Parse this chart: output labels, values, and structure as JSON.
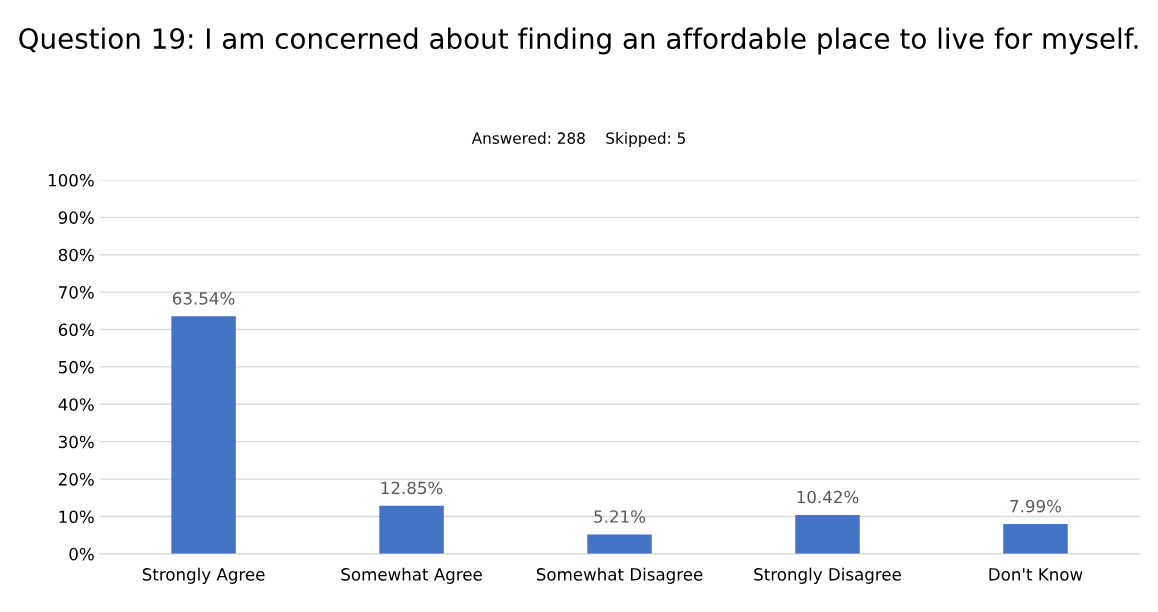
{
  "chart_data": {
    "type": "bar",
    "title": "Question 19: I am concerned about finding an affordable place to live for myself.",
    "subtitle": "Answered: 288    Skipped: 5",
    "categories": [
      "Strongly Agree",
      "Somewhat Agree",
      "Somewhat Disagree",
      "Strongly Disagree",
      "Don't Know"
    ],
    "values": [
      63.54,
      12.85,
      5.21,
      10.42,
      7.99
    ],
    "value_labels": [
      "63.54%",
      "12.85%",
      "5.21%",
      "10.42%",
      "7.99%"
    ],
    "color": "#4472c4",
    "ylim": [
      0,
      100
    ],
    "yticks": [
      {
        "value": 0,
        "label": "0%"
      },
      {
        "value": 10,
        "label": "10%"
      },
      {
        "value": 20,
        "label": "20%"
      },
      {
        "value": 30,
        "label": "30%"
      },
      {
        "value": 40,
        "label": "40%"
      },
      {
        "value": 50,
        "label": "50%"
      },
      {
        "value": 60,
        "label": "60%"
      },
      {
        "value": 70,
        "label": "70%"
      },
      {
        "value": 80,
        "label": "80%"
      },
      {
        "value": 90,
        "label": "90%"
      },
      {
        "value": 100,
        "label": "100%"
      }
    ],
    "grid": "y"
  }
}
